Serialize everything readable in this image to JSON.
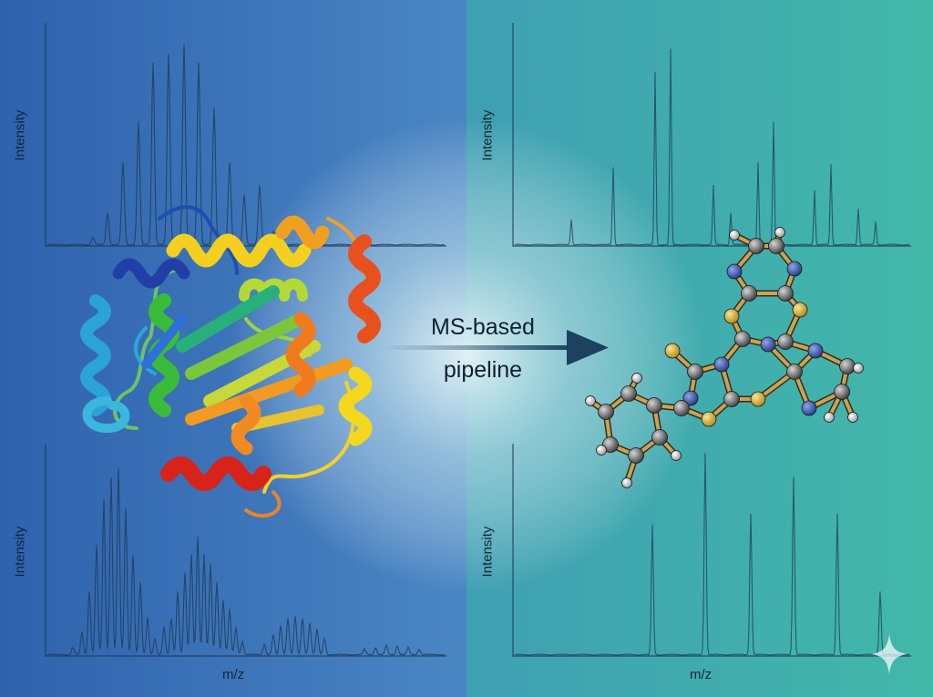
{
  "labels": {
    "intensity_top_left": "Intensity",
    "intensity_bottom_left": "Intensity",
    "intensity_top_right": "Intensity",
    "intensity_bottom_right": "Intensity",
    "mz_left": "m/z",
    "mz_right": "m/z",
    "pipeline_line1": "MS-based",
    "pipeline_line2": "pipeline"
  },
  "colors": {
    "left_panel": "#3a72b4",
    "right_panel": "#3fb0aa",
    "spectrum_line": "#1d3b55",
    "arrow": "#1c4260"
  },
  "icons": {
    "protein": "ribbon-protein-structure",
    "molecule": "ball-and-stick-small-molecule",
    "arrow": "right-arrow-icon",
    "sparkle": "sparkle-icon"
  }
}
